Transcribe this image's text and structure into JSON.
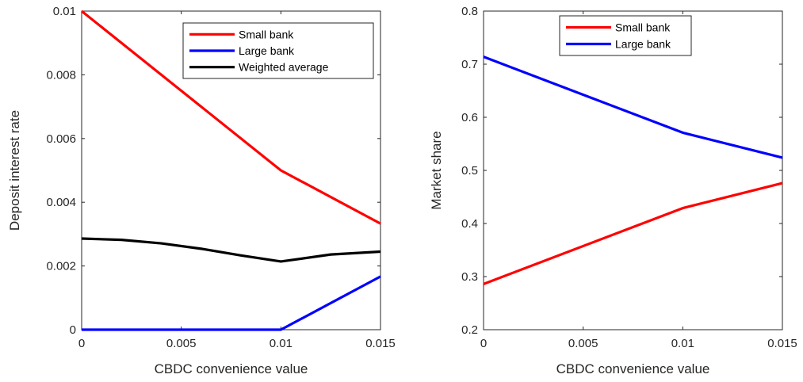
{
  "chart_data": [
    {
      "type": "line",
      "xlabel": "CBDC convenience value",
      "ylabel": "Deposit interest rate",
      "xlim": [
        0,
        0.015
      ],
      "ylim": [
        0,
        0.01
      ],
      "xticks": [
        "0",
        "0.005",
        "0.01",
        "0.015"
      ],
      "yticks": [
        "0",
        "0.002",
        "0.004",
        "0.006",
        "0.008",
        "0.01"
      ],
      "grid": false,
      "legend": "top-right",
      "series": [
        {
          "name": "Small bank",
          "color": "#ff0000",
          "x": [
            0,
            0.01,
            0.015
          ],
          "y": [
            0.01,
            0.005,
            0.00333
          ]
        },
        {
          "name": "Large bank",
          "color": "#0000ff",
          "x": [
            0,
            0.01,
            0.015
          ],
          "y": [
            0,
            0,
            0.00167
          ]
        },
        {
          "name": "Weighted average",
          "color": "#000000",
          "x": [
            0,
            0.002,
            0.004,
            0.006,
            0.008,
            0.01,
            0.0125,
            0.015
          ],
          "y": [
            0.00286,
            0.00282,
            0.00271,
            0.00254,
            0.00233,
            0.00214,
            0.00236,
            0.00245
          ]
        }
      ]
    },
    {
      "type": "line",
      "xlabel": "CBDC convenience value",
      "ylabel": "Market share",
      "xlim": [
        0,
        0.015
      ],
      "ylim": [
        0.2,
        0.8
      ],
      "xticks": [
        "0",
        "0.005",
        "0.01",
        "0.015"
      ],
      "yticks": [
        "0.2",
        "0.3",
        "0.4",
        "0.5",
        "0.6",
        "0.7",
        "0.8"
      ],
      "grid": false,
      "legend": "top-right",
      "series": [
        {
          "name": "Small bank",
          "color": "#ff0000",
          "x": [
            0,
            0.01,
            0.015
          ],
          "y": [
            0.286,
            0.429,
            0.476
          ]
        },
        {
          "name": "Large bank",
          "color": "#0000ff",
          "x": [
            0,
            0.01,
            0.015
          ],
          "y": [
            0.714,
            0.571,
            0.524
          ]
        }
      ]
    }
  ]
}
